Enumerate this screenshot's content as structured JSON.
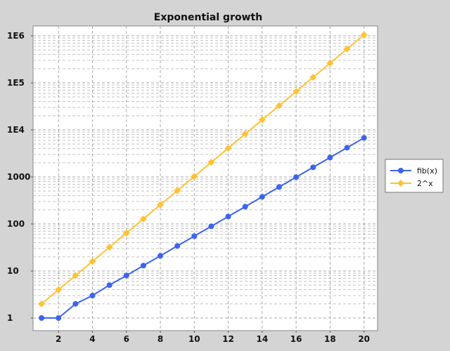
{
  "chart_data": {
    "type": "line",
    "title": "Exponential growth",
    "xlabel": "",
    "ylabel": "",
    "xlim": [
      0.5,
      20.8
    ],
    "ylim": [
      1,
      1000000
    ],
    "yscale": "log",
    "x_ticks": [
      2,
      4,
      6,
      8,
      10,
      12,
      14,
      16,
      18,
      20
    ],
    "y_ticks": [
      1,
      10,
      100,
      1000,
      10000,
      100000,
      1000000
    ],
    "y_tick_labels": [
      "1",
      "10",
      "100",
      "1000",
      "1E4",
      "1E5",
      "1E6"
    ],
    "grid": true,
    "legend_position": "right",
    "x": [
      1,
      2,
      3,
      4,
      5,
      6,
      7,
      8,
      9,
      10,
      11,
      12,
      13,
      14,
      15,
      16,
      17,
      18,
      19,
      20
    ],
    "series": [
      {
        "name": "fib(x)",
        "color": "#3d64f0",
        "marker": "circle",
        "values": [
          1,
          1,
          2,
          3,
          5,
          8,
          13,
          21,
          34,
          55,
          89,
          144,
          233,
          377,
          610,
          987,
          1597,
          2584,
          4181,
          6765
        ]
      },
      {
        "name": "2^x",
        "color": "#ffc234",
        "marker": "diamond",
        "values": [
          2,
          4,
          8,
          16,
          32,
          64,
          128,
          256,
          512,
          1024,
          2048,
          4096,
          8192,
          16384,
          32768,
          65536,
          131072,
          262144,
          524288,
          1048576
        ]
      }
    ]
  }
}
